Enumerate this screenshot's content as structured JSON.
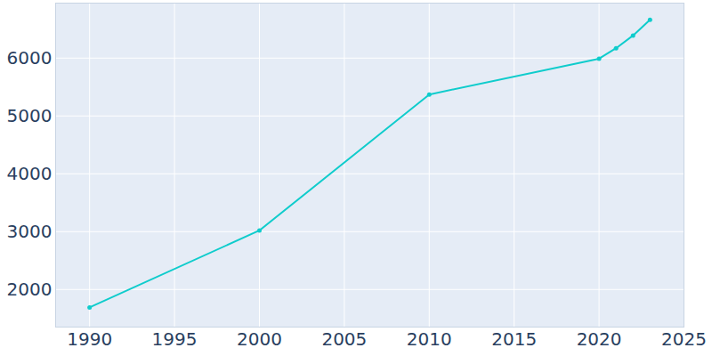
{
  "chart_data": {
    "type": "line",
    "x": [
      1990,
      2000,
      2010,
      2020,
      2021,
      2022,
      2023
    ],
    "values": [
      1690,
      3020,
      5370,
      5990,
      6170,
      6390,
      6660
    ],
    "color": "#0fcccc",
    "marker": "circle",
    "xlim": [
      1988,
      2025
    ],
    "xticks": [
      1990,
      1995,
      2000,
      2005,
      2010,
      2015,
      2020,
      2025
    ],
    "ylim": [
      1350,
      6950
    ],
    "yticks": [
      2000,
      3000,
      4000,
      5000,
      6000
    ],
    "grid": true
  }
}
